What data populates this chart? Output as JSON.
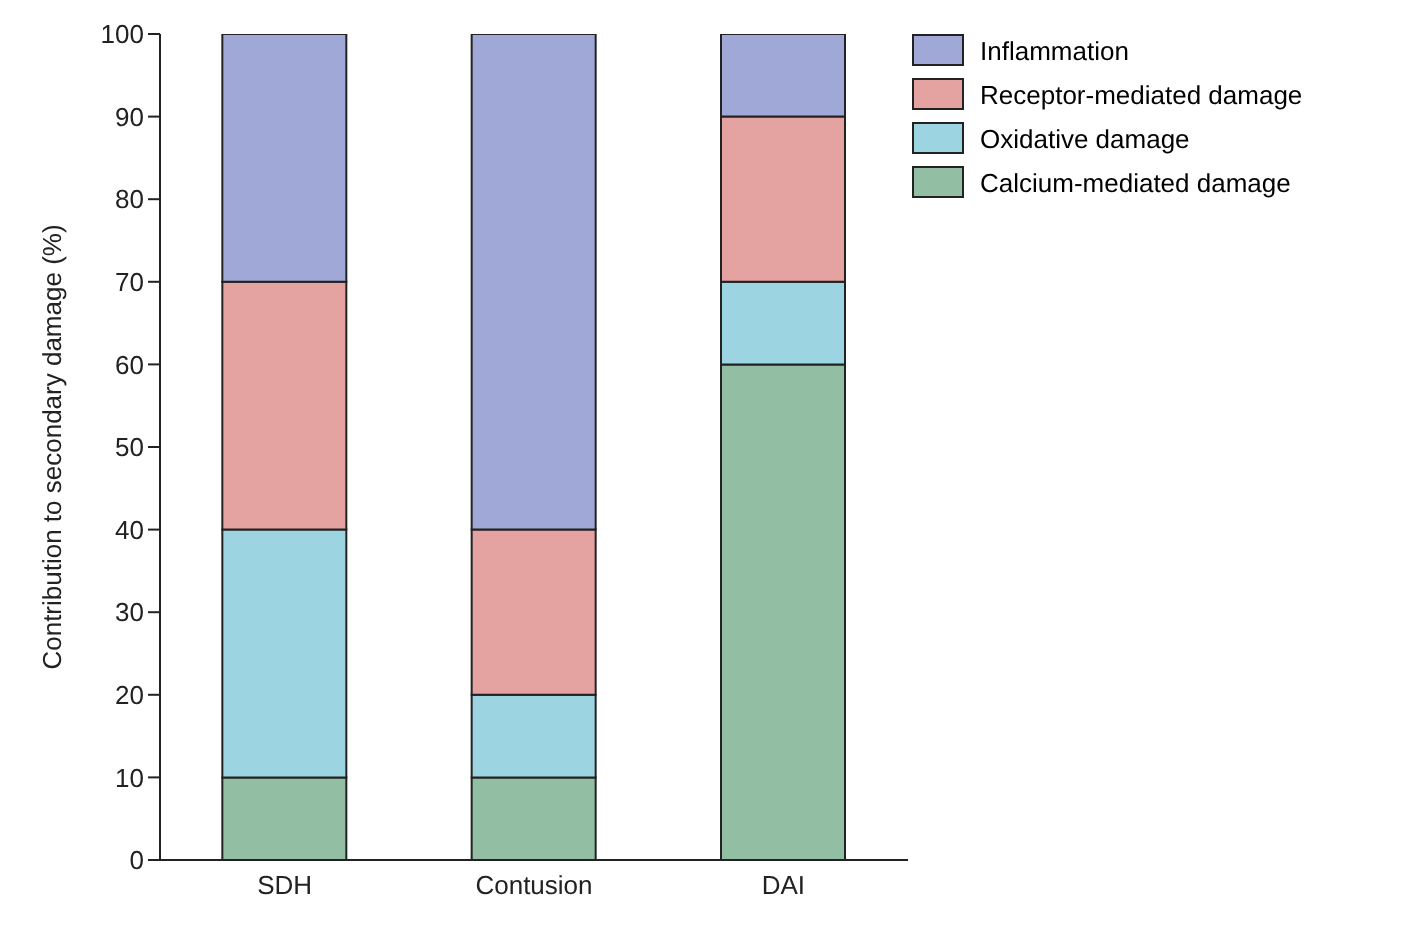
{
  "chart_data": {
    "type": "bar",
    "stacked": true,
    "ylabel": "Contribution to secondary damage (%)",
    "categories": [
      "SDH",
      "Contusion",
      "DAI"
    ],
    "series": [
      {
        "name": "Calcium-mediated damage",
        "color": "#92bfa3",
        "values": [
          10,
          10,
          60
        ]
      },
      {
        "name": "Oxidative damage",
        "color": "#9dd4e2",
        "values": [
          30,
          10,
          10
        ]
      },
      {
        "name": "Receptor-mediated damage",
        "color": "#e4a2a0",
        "values": [
          30,
          20,
          20
        ]
      },
      {
        "name": "Inflammation",
        "color": "#9fa8d6",
        "values": [
          30,
          60,
          10
        ]
      }
    ],
    "ylim": [
      0,
      100
    ],
    "yticks": [
      0,
      10,
      20,
      30,
      40,
      50,
      60,
      70,
      80,
      90,
      100
    ],
    "grid": false,
    "legend": "top right"
  }
}
